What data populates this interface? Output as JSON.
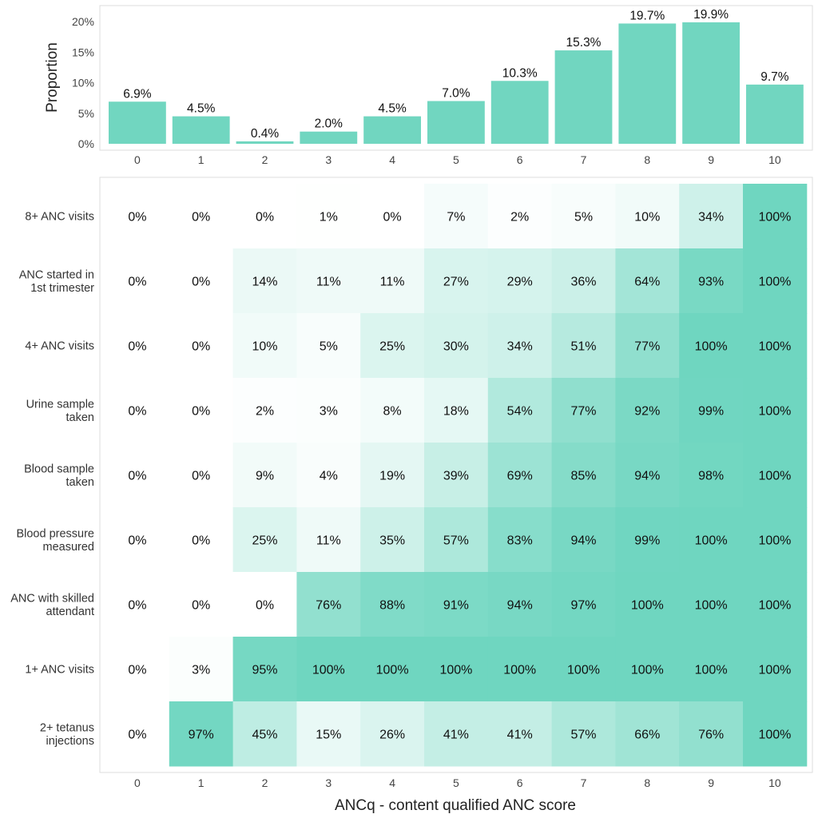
{
  "chart_data": [
    {
      "type": "bar",
      "ylabel": "Proportion",
      "categories": [
        "0",
        "1",
        "2",
        "3",
        "4",
        "5",
        "6",
        "7",
        "8",
        "9",
        "10"
      ],
      "values": [
        6.9,
        4.5,
        0.4,
        2.0,
        4.5,
        7.0,
        10.3,
        15.3,
        19.7,
        19.9,
        9.7
      ],
      "value_labels": [
        "6.9%",
        "4.5%",
        "0.4%",
        "2.0%",
        "4.5%",
        "7.0%",
        "10.3%",
        "15.3%",
        "19.7%",
        "19.9%",
        "9.7%"
      ],
      "yticks": [
        0,
        5,
        10,
        15,
        20
      ],
      "ytick_labels": [
        "0%",
        "5%",
        "10%",
        "15%",
        "20%"
      ],
      "ylim": [
        0,
        21
      ],
      "bar_color": "#71d6c0"
    },
    {
      "type": "heatmap",
      "xlabel": "ANCq - content qualified ANC score",
      "x_categories": [
        "0",
        "1",
        "2",
        "3",
        "4",
        "5",
        "6",
        "7",
        "8",
        "9",
        "10"
      ],
      "rows": [
        {
          "label": [
            "8+ ANC visits"
          ],
          "values": [
            0,
            0,
            0,
            1,
            0,
            7,
            2,
            5,
            10,
            34,
            100
          ]
        },
        {
          "label": [
            "ANC started in",
            "1st trimester"
          ],
          "values": [
            0,
            0,
            14,
            11,
            11,
            27,
            29,
            36,
            64,
            93,
            100
          ]
        },
        {
          "label": [
            "4+ ANC visits"
          ],
          "values": [
            0,
            0,
            10,
            5,
            25,
            30,
            34,
            51,
            77,
            100,
            100
          ]
        },
        {
          "label": [
            "Urine sample",
            "taken"
          ],
          "values": [
            0,
            0,
            2,
            3,
            8,
            18,
            54,
            77,
            92,
            99,
            100
          ]
        },
        {
          "label": [
            "Blood sample",
            "taken"
          ],
          "values": [
            0,
            0,
            9,
            4,
            19,
            39,
            69,
            85,
            94,
            98,
            100
          ]
        },
        {
          "label": [
            "Blood pressure",
            "measured"
          ],
          "values": [
            0,
            0,
            25,
            11,
            35,
            57,
            83,
            94,
            99,
            100,
            100
          ]
        },
        {
          "label": [
            "ANC with skilled",
            "attendant"
          ],
          "values": [
            0,
            0,
            0,
            76,
            88,
            91,
            94,
            97,
            100,
            100,
            100
          ]
        },
        {
          "label": [
            "1+ ANC visits"
          ],
          "values": [
            0,
            3,
            95,
            100,
            100,
            100,
            100,
            100,
            100,
            100,
            100
          ]
        },
        {
          "label": [
            "2+ tetanus",
            "injections"
          ],
          "values": [
            0,
            97,
            45,
            15,
            26,
            41,
            41,
            57,
            66,
            76,
            100
          ]
        }
      ],
      "color_low": "#ffffff",
      "color_high": "#6fd6c0"
    }
  ]
}
